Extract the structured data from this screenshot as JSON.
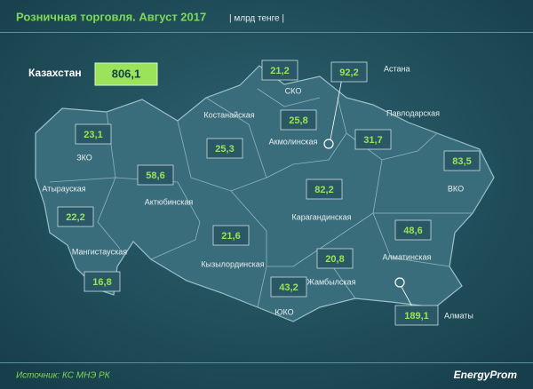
{
  "header": {
    "title": "Розничная торговля. Август 2017",
    "unit": "| млрд тенге |"
  },
  "total": {
    "label": "Казахстан",
    "value": "806,1"
  },
  "regions": [
    {
      "name": "ЗКО",
      "value": "23,1"
    },
    {
      "name": "Атырауская",
      "value": "22,2"
    },
    {
      "name": "Мангистауская",
      "value": "16,8"
    },
    {
      "name": "Актюбинская",
      "value": "58,6"
    },
    {
      "name": "Костанайская",
      "value": "25,3"
    },
    {
      "name": "СКО",
      "value": "21,2"
    },
    {
      "name": "Акмолинская",
      "value": "25,8"
    },
    {
      "name": "Астана",
      "value": "92,2"
    },
    {
      "name": "Павлодарская",
      "value": "31,7"
    },
    {
      "name": "ВКО",
      "value": "83,5"
    },
    {
      "name": "Карагандинская",
      "value": "82,2"
    },
    {
      "name": "Кызылординская",
      "value": "21,6"
    },
    {
      "name": "Жамбылская",
      "value": "20,8"
    },
    {
      "name": "ЮКО",
      "value": "43,2"
    },
    {
      "name": "Алматинская",
      "value": "48,6"
    },
    {
      "name": "Алматы",
      "value": "189,1"
    }
  ],
  "footer": {
    "source": "Источник: КС МНЭ РК",
    "logo": "EnergyProm"
  }
}
